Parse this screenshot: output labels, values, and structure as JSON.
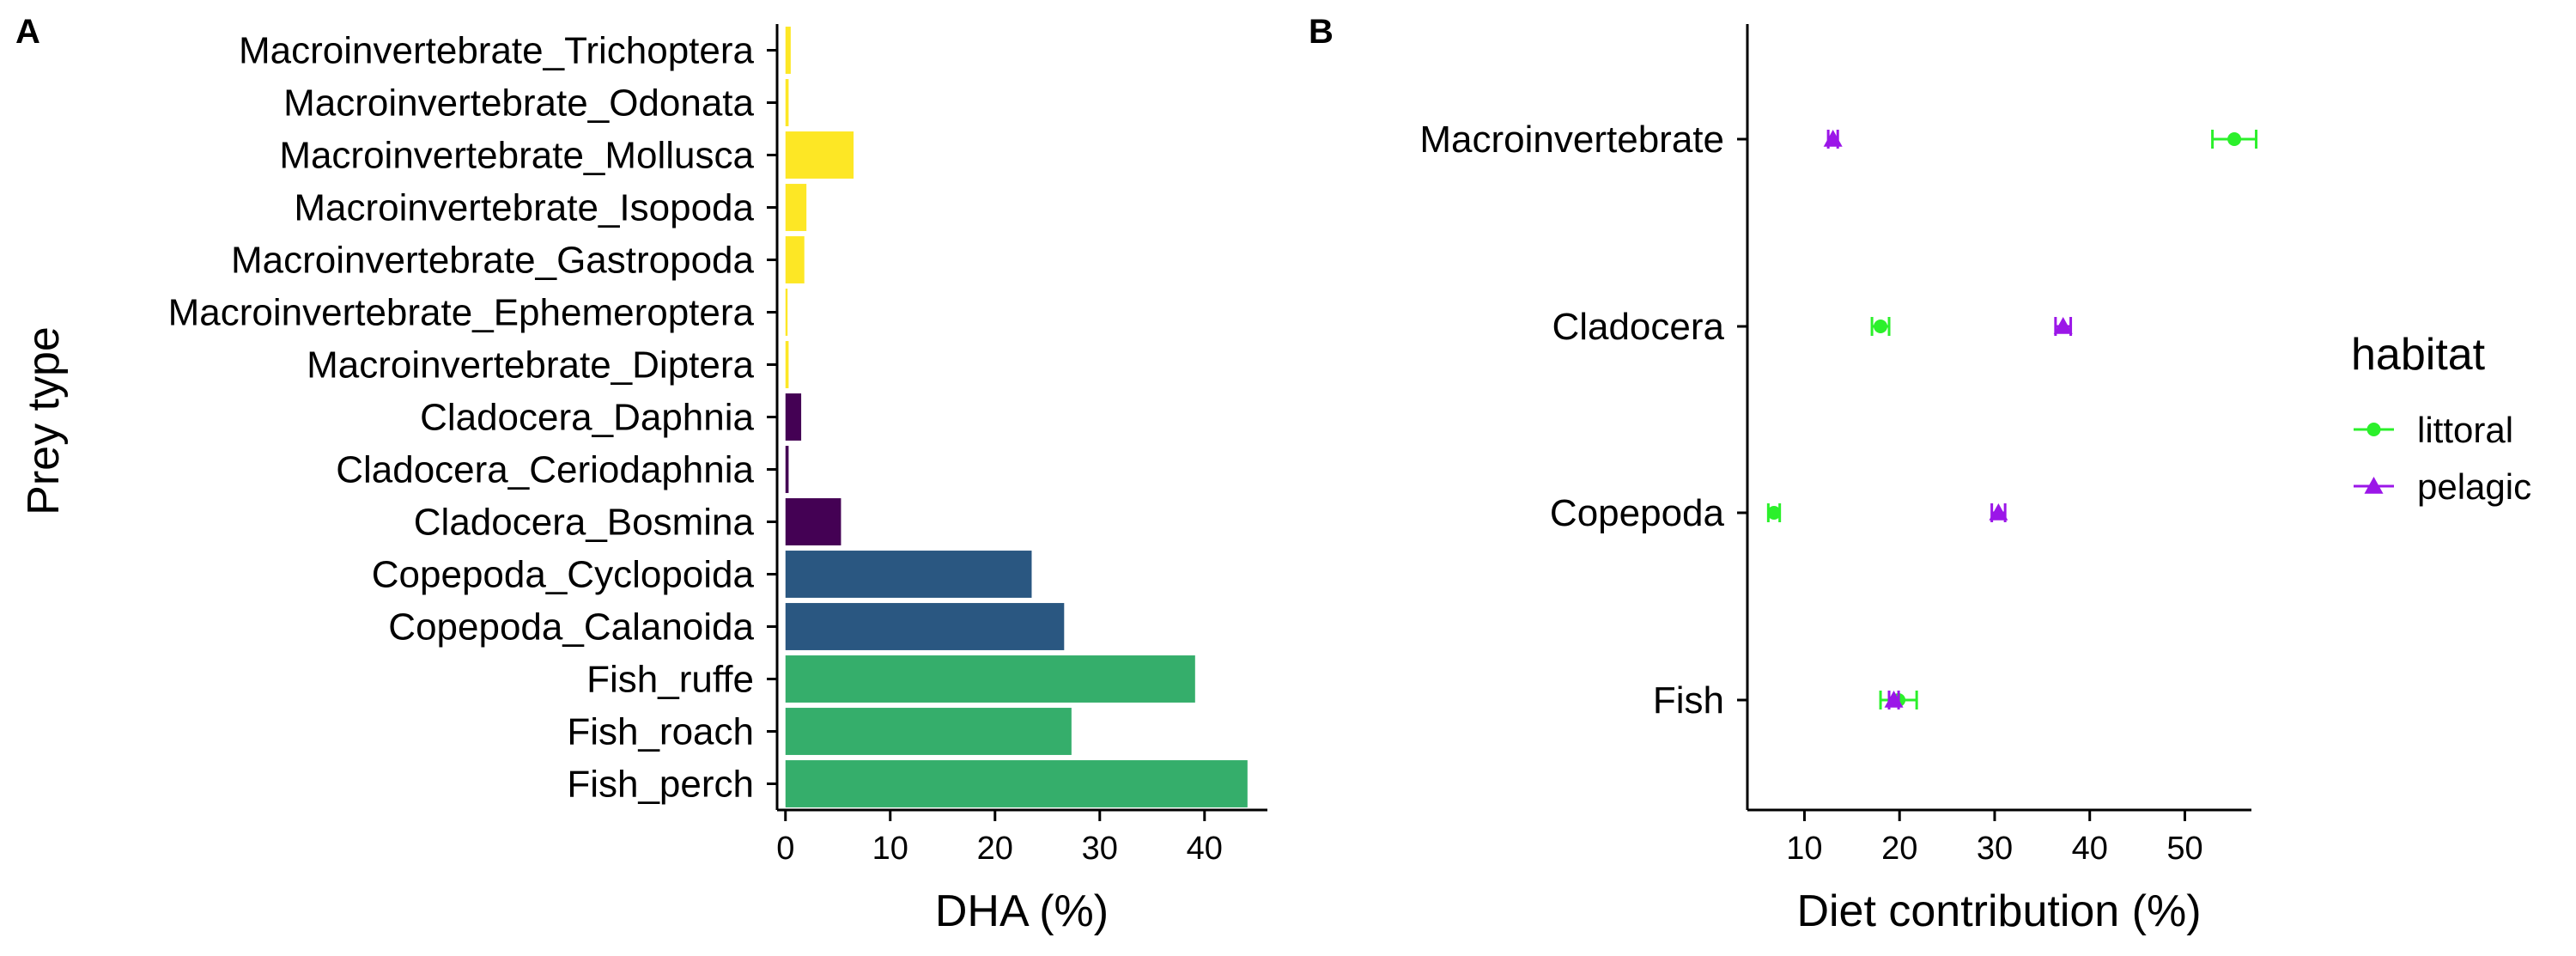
{
  "chart_data": [
    {
      "panel": "A",
      "type": "bar",
      "orientation": "horizontal",
      "xlabel": "DHA (%)",
      "ylabel": "Prey type",
      "xlim": [
        -0.8,
        46
      ],
      "xticks": [
        0,
        10,
        20,
        30,
        40
      ],
      "grid": false,
      "legend": "none",
      "categories": [
        "Macroinvertebrate_Trichoptera",
        "Macroinvertebrate_Odonata",
        "Macroinvertebrate_Mollusca",
        "Macroinvertebrate_Isopoda",
        "Macroinvertebrate_Gastropoda",
        "Macroinvertebrate_Ephemeroptera",
        "Macroinvertebrate_Diptera",
        "Cladocera_Daphnia",
        "Cladocera_Ceriodaphnia",
        "Cladocera_Bosmina",
        "Copepoda_Cyclopoida",
        "Copepoda_Calanoida",
        "Fish_ruffe",
        "Fish_roach",
        "Fish_perch"
      ],
      "values": [
        0.5,
        0.3,
        6.5,
        2.0,
        1.8,
        0.2,
        0.3,
        1.5,
        0.3,
        5.3,
        23.5,
        26.6,
        39.1,
        27.3,
        44.1
      ],
      "colors": [
        "#FDE725",
        "#FDE725",
        "#FDE725",
        "#FDE725",
        "#FDE725",
        "#FDE725",
        "#FDE725",
        "#440154",
        "#440154",
        "#440154",
        "#2A5781",
        "#2A5781",
        "#35AE6B",
        "#35AE6B",
        "#35AE6B"
      ]
    },
    {
      "panel": "B",
      "type": "scatter",
      "xlabel": "Diet contribution (%)",
      "ylabel": "",
      "xlim": [
        4,
        57
      ],
      "xticks": [
        10,
        20,
        30,
        40,
        50
      ],
      "grid": false,
      "legend": "right",
      "legend_title": "habitat",
      "categories": [
        "Macroinvertebrate",
        "Cladocera",
        "Copepoda",
        "Fish"
      ],
      "series": [
        {
          "name": "littoral",
          "marker": "circle",
          "color": "#2BF02B",
          "values": [
            55.2,
            18.0,
            6.8,
            19.9
          ],
          "err_low": [
            52.9,
            17.1,
            6.2,
            18.0
          ],
          "err_high": [
            57.5,
            18.9,
            7.4,
            21.8
          ]
        },
        {
          "name": "pelagic",
          "marker": "triangle",
          "color": "#9B16E8",
          "values": [
            13.0,
            37.2,
            30.4,
            19.4
          ],
          "err_low": [
            12.5,
            36.4,
            29.7,
            18.9
          ],
          "err_high": [
            13.5,
            38.0,
            31.1,
            19.9
          ]
        }
      ]
    }
  ]
}
